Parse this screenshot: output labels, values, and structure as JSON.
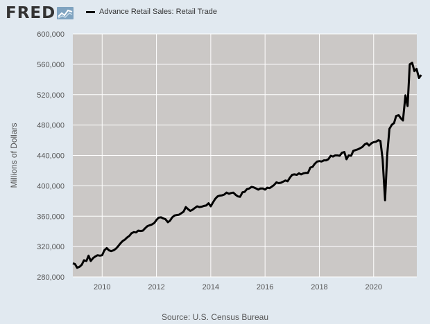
{
  "logo": {
    "text": "FRED",
    "icon": "trend-line-icon"
  },
  "source": "Source: U.S. Census Bureau",
  "colors": {
    "background": "#e1e9f0",
    "plot_bg": "#cbc8c6",
    "grid": "#ffffff",
    "line": "#000000",
    "text": "#555555"
  },
  "chart_data": {
    "type": "line",
    "title": "",
    "xlabel": "",
    "ylabel": "Millions of Dollars",
    "xlim": [
      2008.92,
      2021.59
    ],
    "ylim": [
      280000,
      600000
    ],
    "yticks": [
      280000,
      320000,
      360000,
      400000,
      440000,
      480000,
      520000,
      560000,
      600000
    ],
    "ytick_labels": [
      "280,000",
      "320,000",
      "360,000",
      "400,000",
      "440,000",
      "480,000",
      "520,000",
      "560,000",
      "600,000"
    ],
    "xticks": [
      2010,
      2012,
      2014,
      2016,
      2018,
      2020
    ],
    "xtick_labels": [
      "2010",
      "2012",
      "2014",
      "2016",
      "2018",
      "2020"
    ],
    "grid": true,
    "legend_position": "top-left",
    "series": [
      {
        "name": "Advance Retail Sales: Retail Trade",
        "color": "#000000",
        "points": [
          [
            2008.92,
            298000
          ],
          [
            2009.0,
            297000
          ],
          [
            2009.08,
            292000
          ],
          [
            2009.17,
            293500
          ],
          [
            2009.25,
            296000
          ],
          [
            2009.33,
            302000
          ],
          [
            2009.42,
            301000
          ],
          [
            2009.5,
            308000
          ],
          [
            2009.58,
            301000
          ],
          [
            2009.67,
            305000
          ],
          [
            2009.75,
            307000
          ],
          [
            2009.83,
            308500
          ],
          [
            2009.92,
            308000
          ],
          [
            2010.0,
            308500
          ],
          [
            2010.08,
            315000
          ],
          [
            2010.17,
            318000
          ],
          [
            2010.25,
            315000
          ],
          [
            2010.33,
            314000
          ],
          [
            2010.42,
            315000
          ],
          [
            2010.5,
            317000
          ],
          [
            2010.58,
            320000
          ],
          [
            2010.67,
            324000
          ],
          [
            2010.75,
            327000
          ],
          [
            2010.83,
            329000
          ],
          [
            2010.92,
            332000
          ],
          [
            2011.0,
            334000
          ],
          [
            2011.08,
            337500
          ],
          [
            2011.17,
            339000
          ],
          [
            2011.25,
            338500
          ],
          [
            2011.33,
            341000
          ],
          [
            2011.42,
            340500
          ],
          [
            2011.5,
            341000
          ],
          [
            2011.58,
            344000
          ],
          [
            2011.67,
            347000
          ],
          [
            2011.75,
            348000
          ],
          [
            2011.83,
            349000
          ],
          [
            2011.92,
            351000
          ],
          [
            2012.0,
            355000
          ],
          [
            2012.08,
            358000
          ],
          [
            2012.17,
            358500
          ],
          [
            2012.25,
            357000
          ],
          [
            2012.33,
            356000
          ],
          [
            2012.42,
            352000
          ],
          [
            2012.5,
            354000
          ],
          [
            2012.58,
            358500
          ],
          [
            2012.67,
            361000
          ],
          [
            2012.75,
            361500
          ],
          [
            2012.83,
            362000
          ],
          [
            2012.92,
            364000
          ],
          [
            2013.0,
            366000
          ],
          [
            2013.08,
            372000
          ],
          [
            2013.17,
            369000
          ],
          [
            2013.25,
            367000
          ],
          [
            2013.33,
            368500
          ],
          [
            2013.42,
            371000
          ],
          [
            2013.5,
            373000
          ],
          [
            2013.58,
            372000
          ],
          [
            2013.67,
            372500
          ],
          [
            2013.75,
            373500
          ],
          [
            2013.83,
            374000
          ],
          [
            2013.92,
            377000
          ],
          [
            2014.0,
            373000
          ],
          [
            2014.08,
            378000
          ],
          [
            2014.17,
            383000
          ],
          [
            2014.25,
            386000
          ],
          [
            2014.33,
            387000
          ],
          [
            2014.42,
            387500
          ],
          [
            2014.5,
            388500
          ],
          [
            2014.58,
            391000
          ],
          [
            2014.67,
            389500
          ],
          [
            2014.75,
            390500
          ],
          [
            2014.83,
            391000
          ],
          [
            2014.92,
            388000
          ],
          [
            2015.0,
            386000
          ],
          [
            2015.08,
            385500
          ],
          [
            2015.17,
            391500
          ],
          [
            2015.25,
            392000
          ],
          [
            2015.33,
            395500
          ],
          [
            2015.42,
            396500
          ],
          [
            2015.5,
            398500
          ],
          [
            2015.58,
            398000
          ],
          [
            2015.67,
            396500
          ],
          [
            2015.75,
            395000
          ],
          [
            2015.83,
            396500
          ],
          [
            2015.92,
            396500
          ],
          [
            2016.0,
            395000
          ],
          [
            2016.08,
            397500
          ],
          [
            2016.17,
            397000
          ],
          [
            2016.25,
            399000
          ],
          [
            2016.33,
            401000
          ],
          [
            2016.42,
            404500
          ],
          [
            2016.5,
            403500
          ],
          [
            2016.58,
            404000
          ],
          [
            2016.67,
            405500
          ],
          [
            2016.75,
            407000
          ],
          [
            2016.83,
            406000
          ],
          [
            2016.92,
            411000
          ],
          [
            2017.0,
            414500
          ],
          [
            2017.08,
            415000
          ],
          [
            2017.17,
            414500
          ],
          [
            2017.25,
            416500
          ],
          [
            2017.33,
            415000
          ],
          [
            2017.42,
            416500
          ],
          [
            2017.5,
            417000
          ],
          [
            2017.58,
            417000
          ],
          [
            2017.67,
            424000
          ],
          [
            2017.75,
            425000
          ],
          [
            2017.83,
            429000
          ],
          [
            2017.92,
            432000
          ],
          [
            2018.0,
            432500
          ],
          [
            2018.08,
            432000
          ],
          [
            2018.17,
            433500
          ],
          [
            2018.25,
            433500
          ],
          [
            2018.33,
            435000
          ],
          [
            2018.42,
            439500
          ],
          [
            2018.5,
            438500
          ],
          [
            2018.58,
            440000
          ],
          [
            2018.67,
            440000
          ],
          [
            2018.75,
            439500
          ],
          [
            2018.83,
            443500
          ],
          [
            2018.92,
            444500
          ],
          [
            2019.0,
            435000
          ],
          [
            2019.08,
            440000
          ],
          [
            2019.17,
            439500
          ],
          [
            2019.25,
            446000
          ],
          [
            2019.33,
            447000
          ],
          [
            2019.42,
            448000
          ],
          [
            2019.5,
            449500
          ],
          [
            2019.58,
            451000
          ],
          [
            2019.67,
            454500
          ],
          [
            2019.75,
            456000
          ],
          [
            2019.83,
            453000
          ],
          [
            2019.92,
            456000
          ],
          [
            2020.0,
            457500
          ],
          [
            2020.08,
            458000
          ],
          [
            2020.17,
            460000
          ],
          [
            2020.25,
            459000
          ],
          [
            2020.33,
            435000
          ],
          [
            2020.42,
            381000
          ],
          [
            2020.5,
            441000
          ],
          [
            2020.58,
            475000
          ],
          [
            2020.67,
            480500
          ],
          [
            2020.75,
            482500
          ],
          [
            2020.83,
            492000
          ],
          [
            2020.92,
            493000
          ],
          [
            2021.0,
            489000
          ],
          [
            2021.08,
            486000
          ],
          [
            2021.17,
            519000
          ],
          [
            2021.25,
            505000
          ],
          [
            2021.33,
            560000
          ],
          [
            2021.42,
            562000
          ],
          [
            2021.5,
            551000
          ],
          [
            2021.58,
            554000
          ],
          [
            2021.67,
            542000
          ],
          [
            2021.75,
            546000
          ]
        ]
      }
    ]
  }
}
